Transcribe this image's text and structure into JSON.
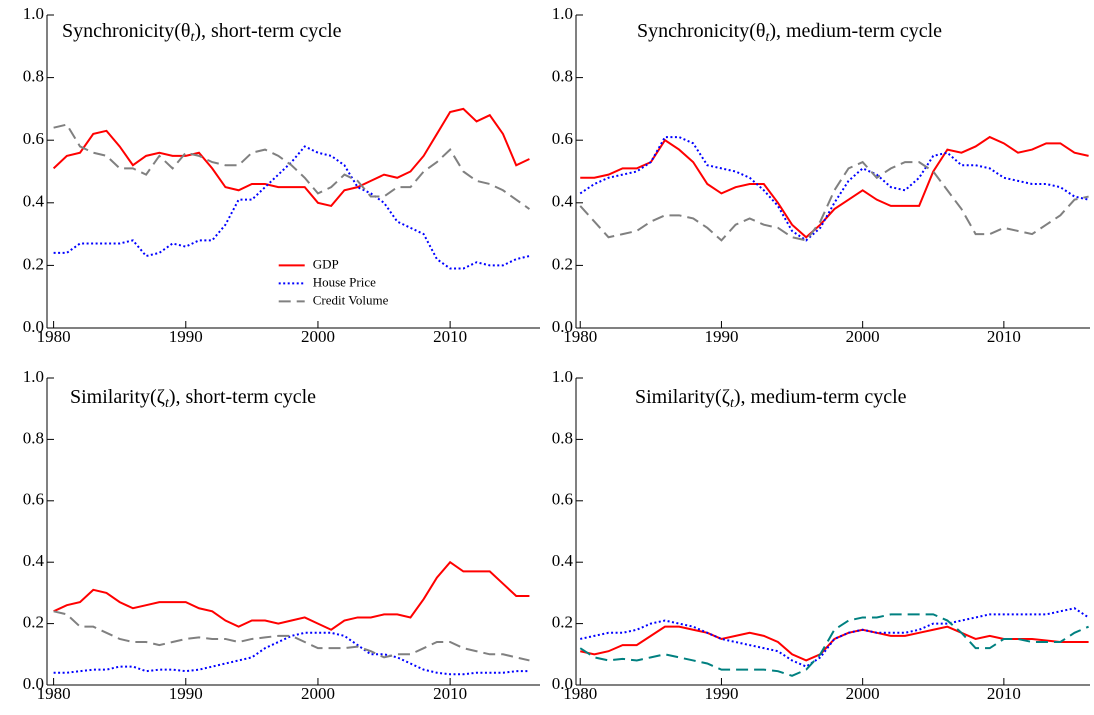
{
  "chart_data": [
    {
      "type": "line",
      "title": [
        "Synchronicity(θ",
        "t",
        "), short-term cycle"
      ],
      "x": [
        1980,
        1981,
        1982,
        1983,
        1984,
        1985,
        1986,
        1987,
        1988,
        1989,
        1990,
        1991,
        1992,
        1993,
        1994,
        1995,
        1996,
        1997,
        1998,
        1999,
        2000,
        2001,
        2002,
        2003,
        2004,
        2005,
        2006,
        2007,
        2008,
        2009,
        2010,
        2011,
        2012,
        2013,
        2014,
        2015,
        2016
      ],
      "xlim": [
        1979.5,
        2016.8
      ],
      "xticks": [
        1980,
        1990,
        2000,
        2010
      ],
      "ylim": [
        0,
        1
      ],
      "yticks": [
        {
          "value": 0,
          "label": "0.0"
        },
        0.2,
        0.4,
        0.6,
        0.8,
        {
          "value": 1,
          "label": "1.0"
        }
      ],
      "legend": "center",
      "series": [
        {
          "name": "GDP",
          "color": "#ff0000",
          "style": "solid",
          "values": [
            0.51,
            0.55,
            0.56,
            0.62,
            0.63,
            0.58,
            0.52,
            0.55,
            0.56,
            0.55,
            0.55,
            0.56,
            0.51,
            0.45,
            0.44,
            0.46,
            0.46,
            0.45,
            0.45,
            0.45,
            0.4,
            0.39,
            0.44,
            0.45,
            0.47,
            0.49,
            0.48,
            0.5,
            0.55,
            0.62,
            0.69,
            0.7,
            0.66,
            0.68,
            0.62,
            0.52,
            0.54
          ]
        },
        {
          "name": "House Price",
          "color": "#0000ff",
          "style": "dotted",
          "values": [
            0.24,
            0.24,
            0.27,
            0.27,
            0.27,
            0.27,
            0.28,
            0.23,
            0.24,
            0.27,
            0.26,
            0.28,
            0.28,
            0.33,
            0.41,
            0.41,
            0.45,
            0.49,
            0.53,
            0.58,
            0.56,
            0.55,
            0.52,
            0.45,
            0.43,
            0.4,
            0.34,
            0.32,
            0.3,
            0.22,
            0.19,
            0.19,
            0.21,
            0.2,
            0.2,
            0.22,
            0.23
          ]
        },
        {
          "name": "Credit Volume",
          "color": "#808080",
          "style": "dashed",
          "values": [
            0.64,
            0.65,
            0.58,
            0.56,
            0.55,
            0.51,
            0.51,
            0.49,
            0.55,
            0.51,
            0.56,
            0.55,
            0.53,
            0.52,
            0.52,
            0.56,
            0.57,
            0.55,
            0.52,
            0.48,
            0.43,
            0.45,
            0.49,
            0.47,
            0.42,
            0.42,
            0.45,
            0.45,
            0.5,
            0.53,
            0.57,
            0.5,
            0.47,
            0.46,
            0.44,
            0.41,
            0.38
          ]
        }
      ]
    },
    {
      "type": "line",
      "title": [
        "Synchronicity(θ",
        "t",
        "), medium-term cycle"
      ],
      "x": [
        1980,
        1981,
        1982,
        1983,
        1984,
        1985,
        1986,
        1987,
        1988,
        1989,
        1990,
        1991,
        1992,
        1993,
        1994,
        1995,
        1996,
        1997,
        1998,
        1999,
        2000,
        2001,
        2002,
        2003,
        2004,
        2005,
        2006,
        2007,
        2008,
        2009,
        2010,
        2011,
        2012,
        2013,
        2014,
        2015,
        2016
      ],
      "xlim": [
        1979.7,
        2016.1
      ],
      "xticks": [
        1980,
        1990,
        2000,
        2010
      ],
      "ylim": [
        0,
        1
      ],
      "yticks": [
        {
          "value": 0,
          "label": "0.0"
        },
        0.2,
        0.4,
        0.6,
        0.8,
        {
          "value": 1,
          "label": "1.0"
        }
      ],
      "series": [
        {
          "color": "#ff0000",
          "style": "solid",
          "values": [
            0.48,
            0.48,
            0.49,
            0.51,
            0.51,
            0.53,
            0.6,
            0.57,
            0.53,
            0.46,
            0.43,
            0.45,
            0.46,
            0.46,
            0.4,
            0.33,
            0.29,
            0.33,
            0.38,
            0.41,
            0.44,
            0.41,
            0.39,
            0.39,
            0.39,
            0.5,
            0.57,
            0.56,
            0.58,
            0.61,
            0.59,
            0.56,
            0.57,
            0.59,
            0.59,
            0.56,
            0.55
          ]
        },
        {
          "color": "#0000ff",
          "style": "dotted",
          "values": [
            0.43,
            0.46,
            0.48,
            0.49,
            0.5,
            0.53,
            0.61,
            0.61,
            0.59,
            0.52,
            0.51,
            0.5,
            0.48,
            0.44,
            0.39,
            0.31,
            0.28,
            0.32,
            0.4,
            0.47,
            0.51,
            0.49,
            0.45,
            0.44,
            0.48,
            0.55,
            0.56,
            0.52,
            0.52,
            0.51,
            0.48,
            0.47,
            0.46,
            0.46,
            0.45,
            0.42,
            0.41
          ]
        },
        {
          "color": "#808080",
          "style": "dashed",
          "values": [
            0.39,
            0.34,
            0.29,
            0.3,
            0.31,
            0.34,
            0.36,
            0.36,
            0.35,
            0.32,
            0.28,
            0.33,
            0.35,
            0.33,
            0.32,
            0.29,
            0.28,
            0.34,
            0.44,
            0.51,
            0.53,
            0.48,
            0.51,
            0.53,
            0.53,
            0.5,
            0.44,
            0.38,
            0.3,
            0.3,
            0.32,
            0.31,
            0.3,
            0.33,
            0.36,
            0.41,
            0.42
          ]
        }
      ]
    },
    {
      "type": "line",
      "title": [
        "Similarity(ζ",
        "t",
        "), short-term cycle"
      ],
      "x": [
        1980,
        1981,
        1982,
        1983,
        1984,
        1985,
        1986,
        1987,
        1988,
        1989,
        1990,
        1991,
        1992,
        1993,
        1994,
        1995,
        1996,
        1997,
        1998,
        1999,
        2000,
        2001,
        2002,
        2003,
        2004,
        2005,
        2006,
        2007,
        2008,
        2009,
        2010,
        2011,
        2012,
        2013,
        2014,
        2015,
        2016
      ],
      "xlim": [
        1979.5,
        2016.8
      ],
      "xticks": [
        1980,
        1990,
        2000,
        2010
      ],
      "ylim": [
        0,
        1
      ],
      "yticks": [
        {
          "value": 0,
          "label": "0.0"
        },
        0.2,
        0.4,
        0.6,
        0.8,
        {
          "value": 1,
          "label": "1.0"
        }
      ],
      "series": [
        {
          "color": "#ff0000",
          "style": "solid",
          "values": [
            0.24,
            0.26,
            0.27,
            0.31,
            0.3,
            0.27,
            0.25,
            0.26,
            0.27,
            0.27,
            0.27,
            0.25,
            0.24,
            0.21,
            0.19,
            0.21,
            0.21,
            0.2,
            0.21,
            0.22,
            0.2,
            0.18,
            0.21,
            0.22,
            0.22,
            0.23,
            0.23,
            0.22,
            0.28,
            0.35,
            0.4,
            0.37,
            0.37,
            0.37,
            0.33,
            0.29,
            0.29
          ]
        },
        {
          "color": "#0000ff",
          "style": "dotted",
          "values": [
            0.04,
            0.04,
            0.045,
            0.05,
            0.05,
            0.06,
            0.06,
            0.045,
            0.05,
            0.05,
            0.045,
            0.05,
            0.06,
            0.07,
            0.08,
            0.09,
            0.12,
            0.14,
            0.16,
            0.17,
            0.17,
            0.17,
            0.16,
            0.13,
            0.1,
            0.1,
            0.09,
            0.07,
            0.05,
            0.04,
            0.035,
            0.035,
            0.04,
            0.04,
            0.04,
            0.045,
            0.045
          ]
        },
        {
          "color": "#808080",
          "style": "dashed",
          "values": [
            0.24,
            0.23,
            0.19,
            0.19,
            0.17,
            0.15,
            0.14,
            0.14,
            0.13,
            0.14,
            0.15,
            0.155,
            0.15,
            0.15,
            0.14,
            0.15,
            0.155,
            0.16,
            0.16,
            0.14,
            0.12,
            0.12,
            0.12,
            0.125,
            0.11,
            0.09,
            0.1,
            0.1,
            0.12,
            0.14,
            0.14,
            0.12,
            0.11,
            0.1,
            0.1,
            0.09,
            0.08
          ]
        }
      ]
    },
    {
      "type": "line",
      "title": [
        "Similarity(ζ",
        "t",
        "), medium-term cycle"
      ],
      "x": [
        1980,
        1981,
        1982,
        1983,
        1984,
        1985,
        1986,
        1987,
        1988,
        1989,
        1990,
        1991,
        1992,
        1993,
        1994,
        1995,
        1996,
        1997,
        1998,
        1999,
        2000,
        2001,
        2002,
        2003,
        2004,
        2005,
        2006,
        2007,
        2008,
        2009,
        2010,
        2011,
        2012,
        2013,
        2014,
        2015,
        2016
      ],
      "xlim": [
        1979.7,
        2016.1
      ],
      "xticks": [
        1980,
        1990,
        2000,
        2010
      ],
      "ylim": [
        0,
        1
      ],
      "yticks": [
        {
          "value": 0,
          "label": "0.0"
        },
        0.2,
        0.4,
        0.6,
        0.8,
        {
          "value": 1,
          "label": "1.0"
        }
      ],
      "series": [
        {
          "color": "#ff0000",
          "style": "solid",
          "values": [
            0.11,
            0.1,
            0.11,
            0.13,
            0.13,
            0.16,
            0.19,
            0.19,
            0.18,
            0.17,
            0.15,
            0.16,
            0.17,
            0.16,
            0.14,
            0.1,
            0.08,
            0.1,
            0.15,
            0.17,
            0.18,
            0.17,
            0.16,
            0.16,
            0.17,
            0.18,
            0.19,
            0.17,
            0.15,
            0.16,
            0.15,
            0.15,
            0.15,
            0.145,
            0.14,
            0.14,
            0.14
          ]
        },
        {
          "color": "#0000ff",
          "style": "dotted",
          "values": [
            0.15,
            0.16,
            0.17,
            0.17,
            0.18,
            0.2,
            0.21,
            0.2,
            0.19,
            0.17,
            0.15,
            0.14,
            0.13,
            0.12,
            0.11,
            0.08,
            0.06,
            0.09,
            0.15,
            0.17,
            0.18,
            0.17,
            0.17,
            0.17,
            0.18,
            0.2,
            0.2,
            0.21,
            0.22,
            0.23,
            0.23,
            0.23,
            0.23,
            0.23,
            0.24,
            0.25,
            0.22
          ]
        },
        {
          "color": "#008080",
          "style": "dashed",
          "values": [
            0.12,
            0.09,
            0.08,
            0.085,
            0.08,
            0.09,
            0.1,
            0.09,
            0.08,
            0.07,
            0.05,
            0.05,
            0.05,
            0.05,
            0.045,
            0.03,
            0.05,
            0.1,
            0.18,
            0.21,
            0.22,
            0.22,
            0.23,
            0.23,
            0.23,
            0.23,
            0.21,
            0.17,
            0.12,
            0.12,
            0.15,
            0.15,
            0.14,
            0.14,
            0.14,
            0.17,
            0.19
          ]
        }
      ]
    }
  ]
}
